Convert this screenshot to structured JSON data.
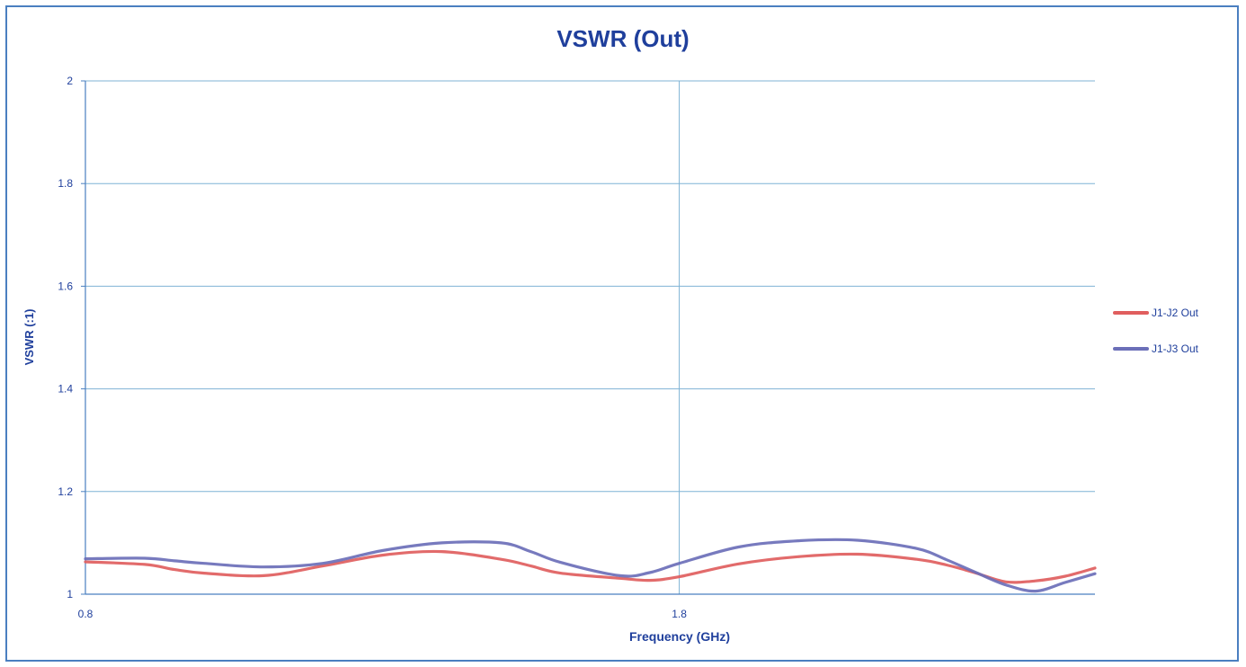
{
  "chart_data": {
    "type": "line",
    "title": "VSWR (Out)",
    "xlabel": "Frequency (GHz)",
    "ylabel": "VSWR (:1)",
    "xlim": [
      0.8,
      2.5
    ],
    "ylim": [
      1,
      2
    ],
    "x_ticks": [
      "0.8",
      "1.8"
    ],
    "y_ticks": [
      "1",
      "1.2",
      "1.4",
      "1.6",
      "1.8",
      "2"
    ],
    "grid": true,
    "legend_position": "right",
    "series": [
      {
        "name": "J1-J2 Out",
        "color": "#e05e5e",
        "x": [
          0.8,
          0.9,
          0.95,
          1.0,
          1.1,
          1.2,
          1.3,
          1.4,
          1.5,
          1.55,
          1.6,
          1.7,
          1.75,
          1.8,
          1.9,
          2.0,
          2.1,
          2.2,
          2.25,
          2.3,
          2.35,
          2.4,
          2.45,
          2.5
        ],
        "values": [
          1.063,
          1.058,
          1.048,
          1.041,
          1.036,
          1.055,
          1.076,
          1.083,
          1.068,
          1.055,
          1.041,
          1.031,
          1.027,
          1.034,
          1.059,
          1.073,
          1.078,
          1.068,
          1.057,
          1.041,
          1.024,
          1.026,
          1.035,
          1.051
        ]
      },
      {
        "name": "J1-J3 Out",
        "color": "#6b6fb8",
        "x": [
          0.8,
          0.9,
          0.95,
          1.0,
          1.1,
          1.2,
          1.3,
          1.4,
          1.5,
          1.55,
          1.6,
          1.7,
          1.75,
          1.8,
          1.9,
          2.0,
          2.1,
          2.2,
          2.25,
          2.3,
          2.35,
          2.4,
          2.45,
          2.5
        ],
        "values": [
          1.069,
          1.07,
          1.065,
          1.06,
          1.053,
          1.06,
          1.085,
          1.1,
          1.1,
          1.083,
          1.062,
          1.036,
          1.042,
          1.06,
          1.092,
          1.104,
          1.105,
          1.089,
          1.067,
          1.042,
          1.018,
          1.006,
          1.023,
          1.04
        ]
      }
    ]
  }
}
